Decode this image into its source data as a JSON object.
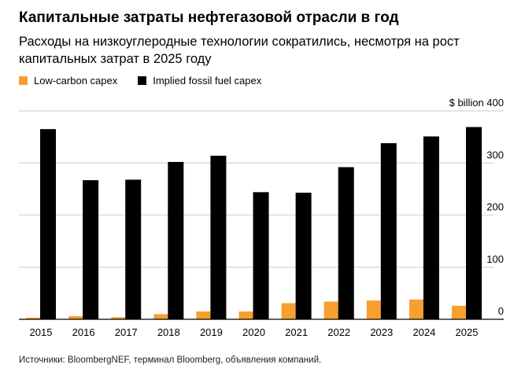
{
  "title": "Капитальные затраты нефтегазовой отрасли в год",
  "subtitle": "Расходы на низкоуглеродные технологии сократились, несмотря на рост капитальных затрат в 2025 году",
  "source": "Источники: BloombergNEF, терминал Bloomberg, объявления компаний.",
  "chart_data": {
    "type": "bar",
    "categories": [
      "2015",
      "2016",
      "2017",
      "2018",
      "2019",
      "2020",
      "2021",
      "2022",
      "2023",
      "2024",
      "2025"
    ],
    "series": [
      {
        "name": "Low-carbon capex",
        "color": "#f7a030",
        "values": [
          3,
          6,
          4,
          10,
          15,
          15,
          31,
          34,
          36,
          38,
          26
        ]
      },
      {
        "name": "Implied fossil fuel capex",
        "color": "#000000",
        "values": [
          365,
          267,
          268,
          302,
          314,
          244,
          243,
          292,
          338,
          351,
          369
        ]
      }
    ],
    "yunit": "$ billion",
    "ylim": [
      0,
      400
    ],
    "yticks": [
      0,
      100,
      200,
      300,
      400
    ],
    "yaxis_position": "right",
    "grid": true,
    "legend_position": "top-left"
  }
}
